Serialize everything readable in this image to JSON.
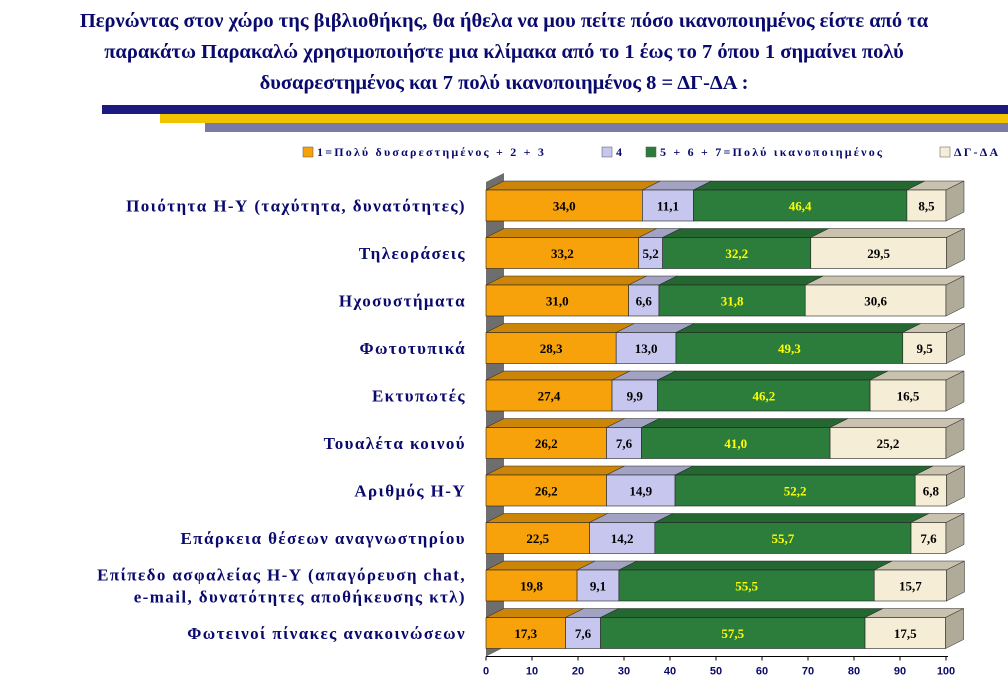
{
  "title_lines": [
    "Περνώντας στον χώρο της βιβλιοθήκης, θα ήθελα να μου πείτε πόσο ικανοποιημένος είστε από τα",
    "παρακάτω Παρακαλώ χρησιμοποιήστε μια κλίμακα από το 1 έως το 7 όπου 1 σημαίνει πολύ",
    "δυσαρεστημένος και 7 πολύ ικανοποιημένος 8 = ΔΓ-ΔΑ :"
  ],
  "colors": {
    "title": "#0a0a6e",
    "deco_blue": "#1a1a80",
    "deco_yellow": "#f2c400",
    "deco_slate": "#7a7aa6"
  },
  "chart_data": {
    "type": "bar",
    "orientation": "horizontal",
    "stacked": true,
    "percent": true,
    "three_d": true,
    "xlim": [
      0,
      100
    ],
    "xticks": [
      0,
      10,
      20,
      30,
      40,
      50,
      60,
      70,
      80,
      90,
      100
    ],
    "legend_position": "top",
    "categories": [
      [
        "Ποιότητα Η-Υ (ταχύτητα, δυνατότητες)"
      ],
      [
        "Τηλεοράσεις"
      ],
      [
        "Ηχοσυστήματα"
      ],
      [
        "Φωτοτυπικά"
      ],
      [
        "Εκτυπωτές"
      ],
      [
        "Τουαλέτα κοινού"
      ],
      [
        "Αριθμός Η-Υ"
      ],
      [
        "Επάρκεια θέσεων αναγνωστηρίου"
      ],
      [
        "Επίπεδο ασφαλείας Η-Υ (απαγόρευση chat,",
        "e-mail, δυνατότητες αποθήκευσης κτλ)"
      ],
      [
        "Φωτεινοί πίνακες ανακοινώσεων"
      ]
    ],
    "series": [
      {
        "name": "1=Πολύ δυσαρεστημένος + 2 + 3",
        "color": "#f7a20b",
        "label_color": "#000000",
        "values": [
          34.0,
          33.2,
          31.0,
          28.3,
          27.4,
          26.2,
          26.2,
          22.5,
          19.8,
          17.3
        ],
        "labels": [
          "34,0",
          "33,2",
          "31,0",
          "28,3",
          "27,4",
          "26,2",
          "26,2",
          "22,5",
          "19,8",
          "17,3"
        ]
      },
      {
        "name": "4",
        "color": "#c6c6ee",
        "label_color": "#000000",
        "values": [
          11.1,
          5.2,
          6.6,
          13.0,
          9.9,
          7.6,
          14.9,
          14.2,
          9.1,
          7.6
        ],
        "labels": [
          "11,1",
          "5,2",
          "6,6",
          "13,0",
          "9,9",
          "7,6",
          "14,9",
          "14,2",
          "9,1",
          "7,6"
        ]
      },
      {
        "name": "5 + 6 + 7=Πολύ ικανοποιημένος",
        "color": "#2c7d3c",
        "label_color": "#ffff00",
        "values": [
          46.4,
          32.2,
          31.8,
          49.3,
          46.2,
          41.0,
          52.2,
          55.7,
          55.5,
          57.5
        ],
        "labels": [
          "46,4",
          "32,2",
          "31,8",
          "49,3",
          "46,2",
          "41,0",
          "52,2",
          "55,7",
          "55,5",
          "57,5"
        ]
      },
      {
        "name": "ΔΓ-ΔΑ",
        "color": "#f5edd5",
        "label_color": "#000000",
        "values": [
          8.5,
          29.5,
          30.6,
          9.5,
          16.5,
          25.2,
          6.8,
          7.6,
          15.7,
          17.5
        ],
        "labels": [
          "8,5",
          "29,5",
          "30,6",
          "9,5",
          "16,5",
          "25,2",
          "6,8",
          "7,6",
          "15,7",
          "17,5"
        ]
      }
    ]
  }
}
